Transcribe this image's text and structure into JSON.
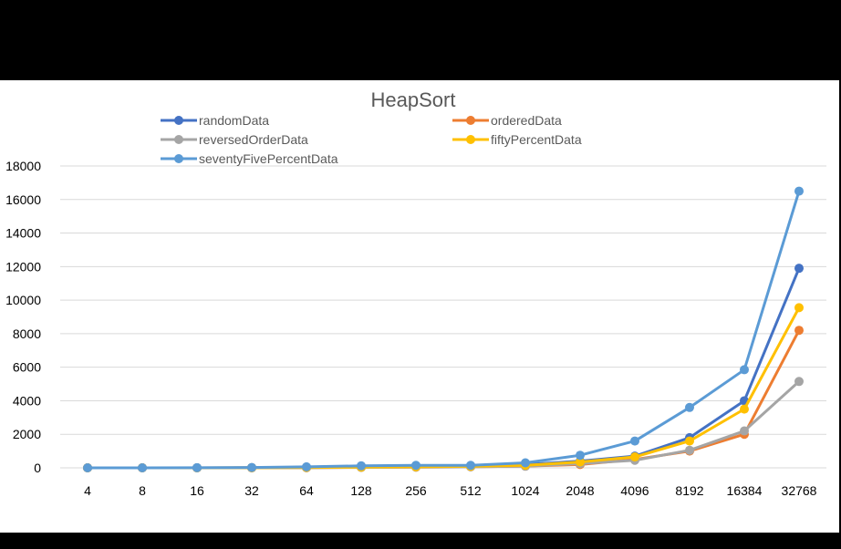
{
  "chart_data": {
    "type": "line",
    "title": "HeapSort",
    "categories": [
      "4",
      "8",
      "16",
      "32",
      "64",
      "128",
      "256",
      "512",
      "1024",
      "2048",
      "4096",
      "8192",
      "16384",
      "32768"
    ],
    "ylim": [
      0,
      18000
    ],
    "yticks": [
      0,
      2000,
      4000,
      6000,
      8000,
      10000,
      12000,
      14000,
      16000,
      18000
    ],
    "grid": true,
    "legend": "top",
    "series": [
      {
        "name": "randomData",
        "color": "#4472C4",
        "values": [
          0,
          0,
          0,
          10,
          30,
          60,
          80,
          100,
          200,
          400,
          700,
          1800,
          4000,
          11900
        ]
      },
      {
        "name": "orderedData",
        "color": "#ED7D31",
        "values": [
          0,
          0,
          0,
          5,
          10,
          30,
          40,
          60,
          100,
          200,
          500,
          1000,
          2000,
          8200
        ]
      },
      {
        "name": "reversedOrderData",
        "color": "#A5A5A5",
        "values": [
          0,
          0,
          0,
          5,
          10,
          20,
          40,
          60,
          100,
          250,
          450,
          1050,
          2200,
          5150
        ]
      },
      {
        "name": "fiftyPercentData",
        "color": "#FFC000",
        "values": [
          0,
          0,
          0,
          10,
          20,
          40,
          60,
          90,
          150,
          350,
          650,
          1600,
          3500,
          9550
        ]
      },
      {
        "name": "seventyFivePercentData",
        "color": "#5B9BD5",
        "values": [
          0,
          0,
          10,
          20,
          60,
          120,
          150,
          150,
          300,
          750,
          1600,
          3600,
          5850,
          16500
        ]
      }
    ]
  }
}
